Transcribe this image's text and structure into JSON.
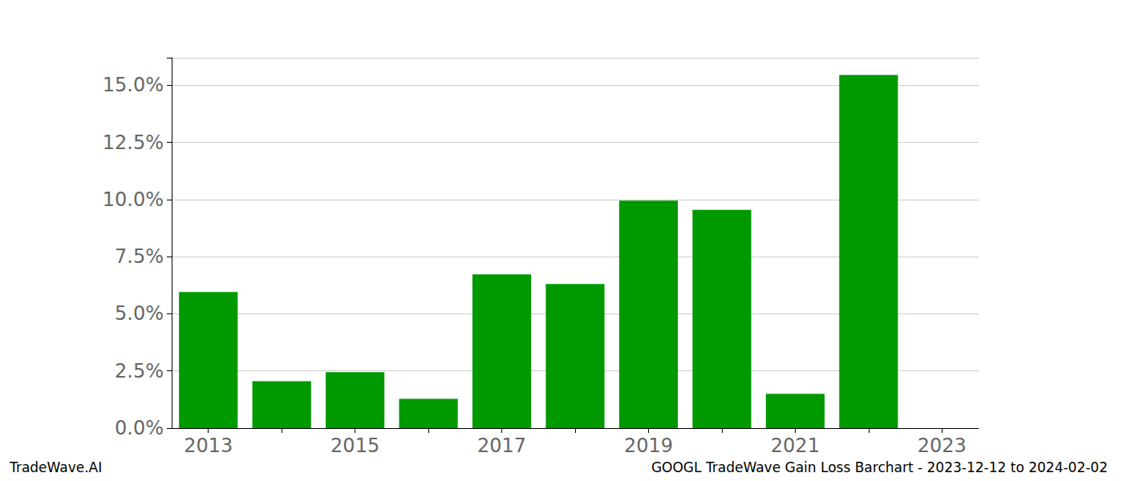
{
  "chart_data": {
    "type": "bar",
    "title": "GOOGL TradeWave Gain Loss Barchart - 2023-12-12 to 2024-02-02",
    "annotations": [
      "TradeWave.AI"
    ],
    "categories": [
      "2013",
      null,
      "2015",
      null,
      "2017",
      null,
      "2019",
      null,
      "2021",
      null,
      "2023"
    ],
    "values": [
      5.95,
      2.05,
      2.45,
      1.28,
      6.72,
      6.3,
      9.95,
      9.55,
      1.5,
      15.45,
      null
    ],
    "color": "#009900",
    "ylim": [
      0,
      16.2
    ],
    "yticks": [
      {
        "value": 0,
        "label": "0.0%"
      },
      {
        "value": 2.5,
        "label": "2.5%"
      },
      {
        "value": 5,
        "label": "5.0%"
      },
      {
        "value": 7.5,
        "label": "7.5%"
      },
      {
        "value": 10,
        "label": "10.0%"
      },
      {
        "value": 12.5,
        "label": "12.5%"
      },
      {
        "value": 15,
        "label": "15.0%"
      }
    ],
    "grid": true
  }
}
